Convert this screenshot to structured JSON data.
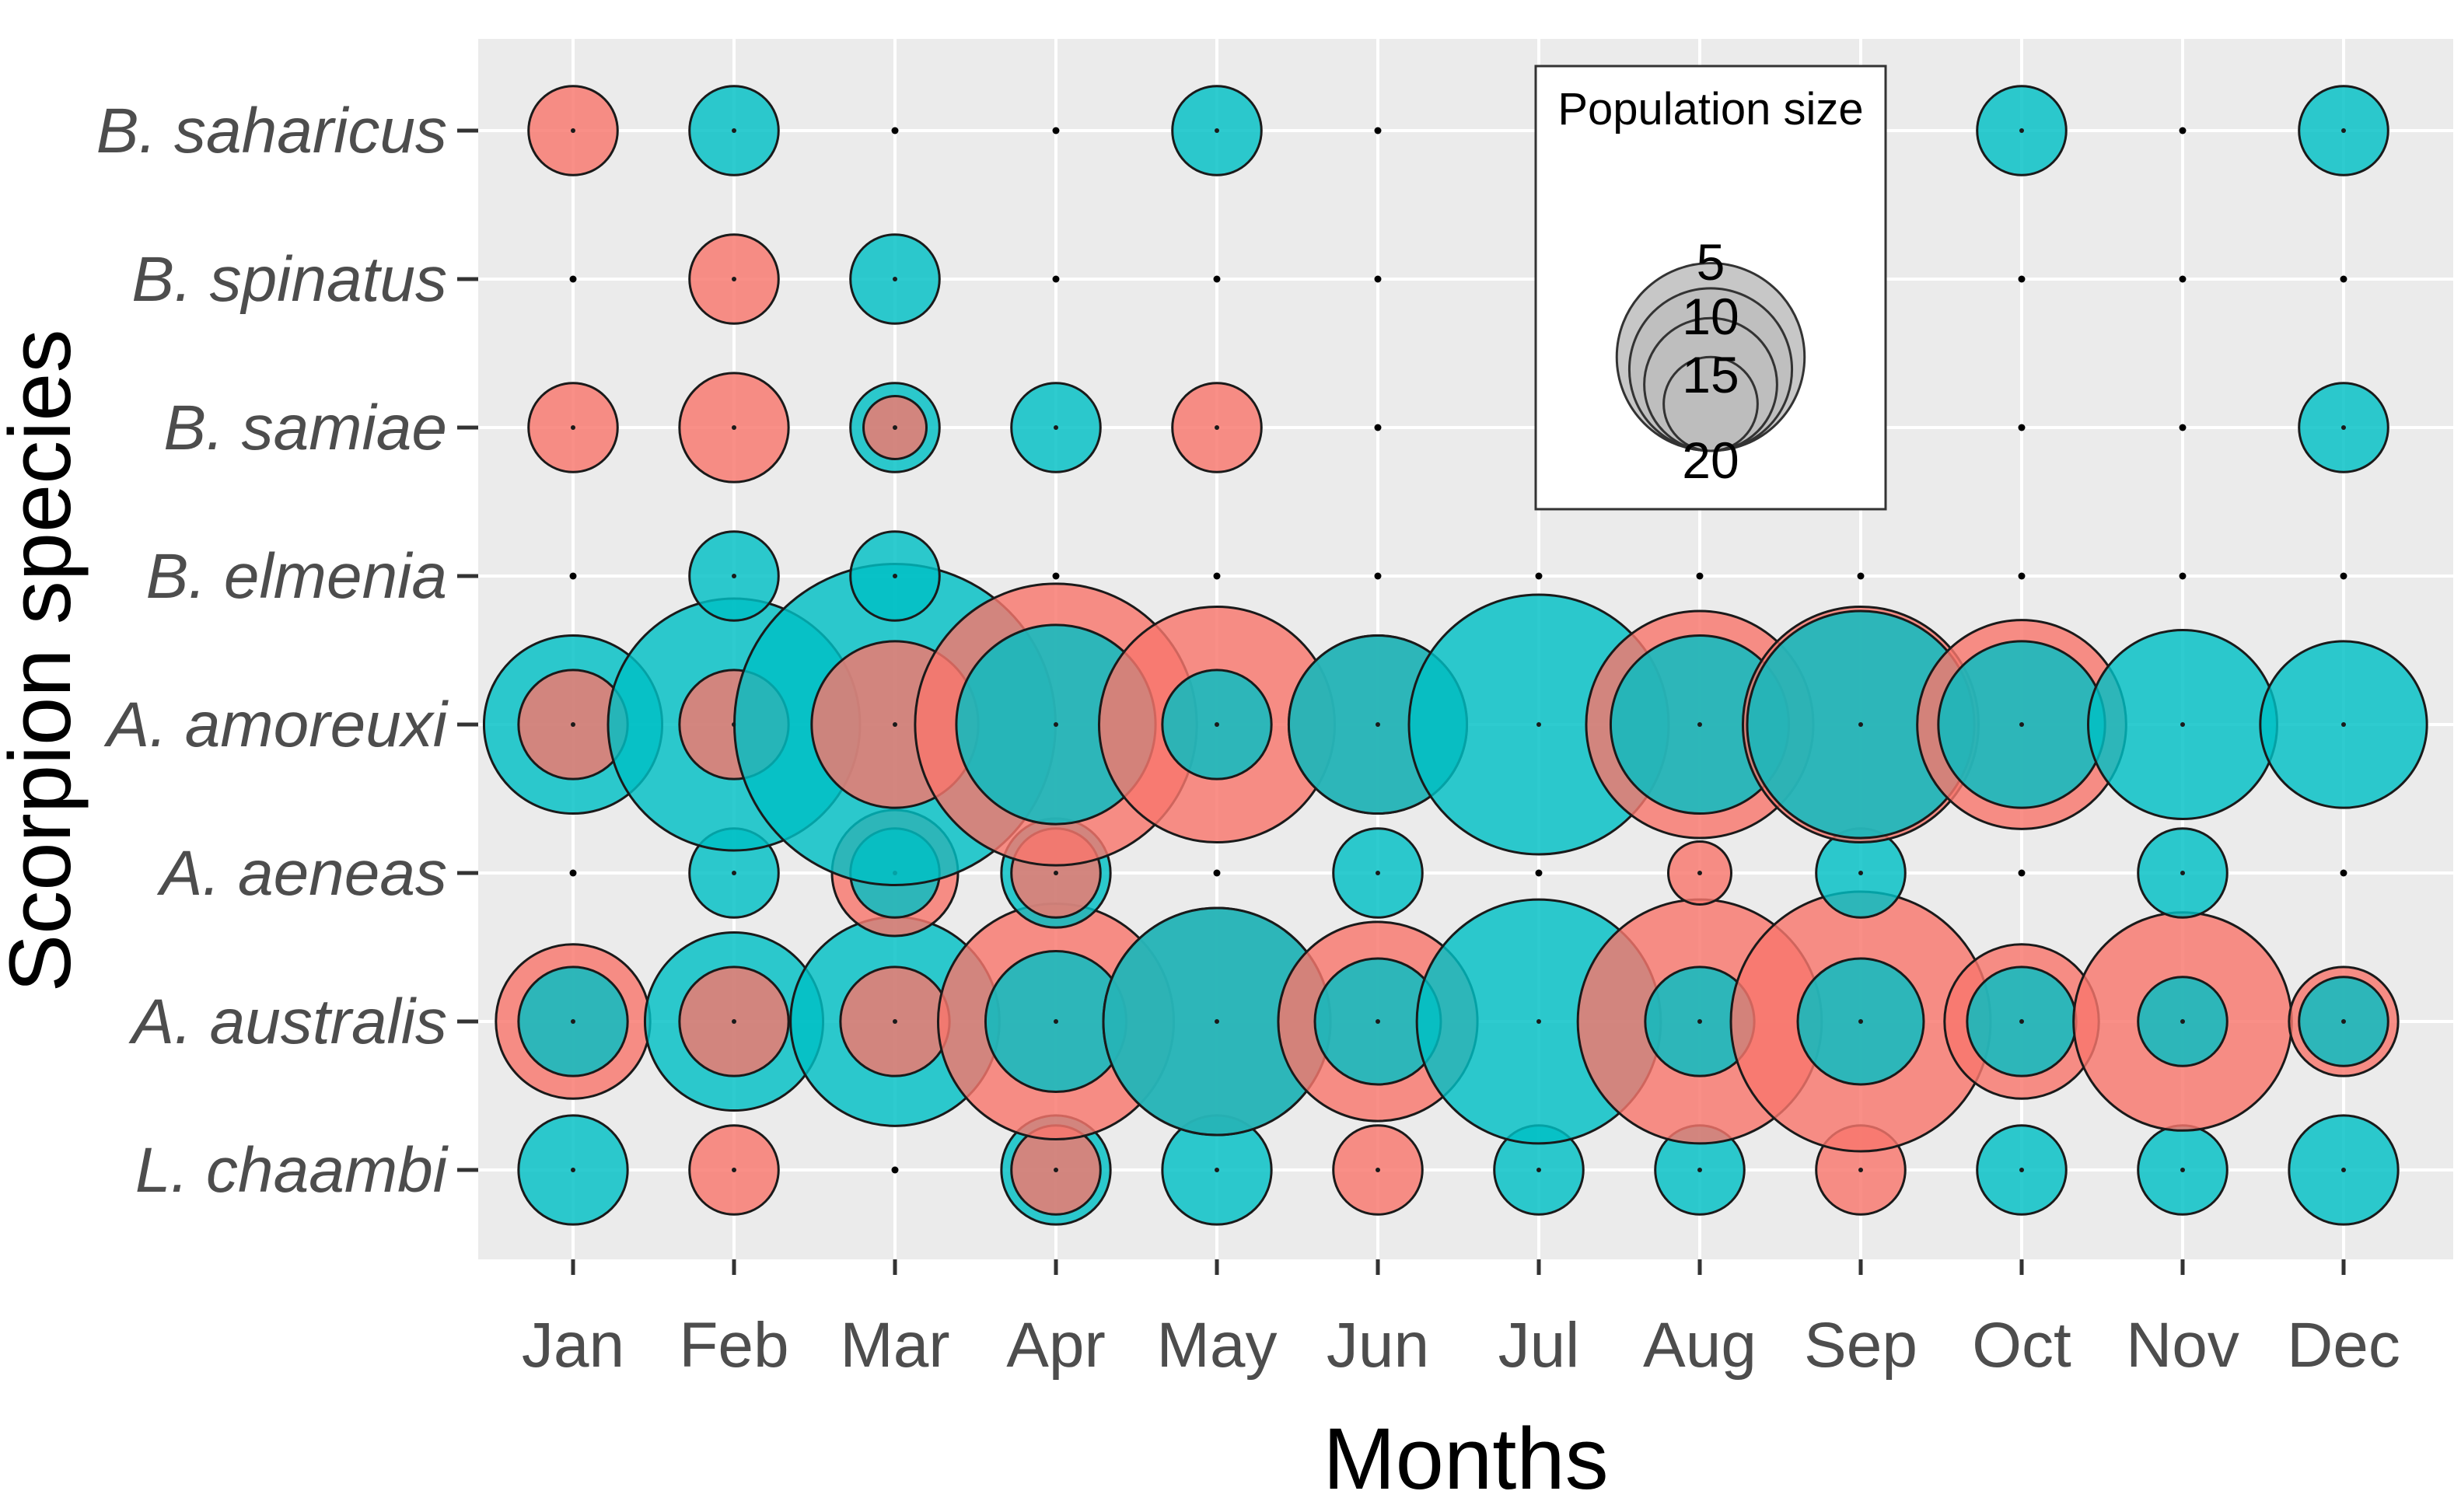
{
  "chart_data": {
    "type": "bubble",
    "xlabel": "Months",
    "ylabel": "Scorpion species",
    "months": [
      "Jan",
      "Feb",
      "Mar",
      "Apr",
      "May",
      "Jun",
      "Jul",
      "Aug",
      "Sep",
      "Oct",
      "Nov",
      "Dec"
    ],
    "species": [
      "L. chaambi",
      "A. australis",
      "A. aeneas",
      "A. amoreuxi",
      "B. elmenia",
      "B. samiae",
      "B. spinatus",
      "B. saharicus"
    ],
    "grid": true,
    "legend": {
      "title": "Population  size",
      "breaks": [
        5,
        10,
        15,
        20
      ],
      "position": "top-right"
    },
    "colors": {
      "group_a": "#f8766d",
      "group_b": "#00bfc4",
      "background": "#ebebeb",
      "gridline": "#ffffff",
      "legend_fill": "#bdbdbd"
    },
    "series": [
      {
        "name": "group_a",
        "color": "#f8766d",
        "values": {
          "B. saharicus": [
            2,
            0,
            0,
            0,
            0,
            0,
            0,
            0,
            0,
            0,
            0,
            0
          ],
          "B. spinatus": [
            0,
            2,
            0,
            0,
            0,
            0,
            0,
            0,
            0,
            0,
            0,
            0
          ],
          "B. samiae": [
            2,
            3,
            1,
            0,
            2,
            0,
            0,
            0,
            0,
            0,
            0,
            0
          ],
          "B. elmenia": [
            0,
            0,
            0,
            0,
            0,
            0,
            0,
            0,
            0,
            0,
            0,
            0
          ],
          "A. amoreuxi": [
            3,
            3,
            7,
            20,
            14,
            8,
            0,
            13,
            14,
            11,
            0,
            0
          ],
          "A. aeneas": [
            0,
            0,
            4,
            2,
            0,
            0,
            0,
            1,
            0,
            0,
            0,
            0
          ],
          "A. australis": [
            6,
            3,
            3,
            14,
            13,
            10,
            0,
            15,
            17,
            6,
            12,
            3
          ],
          "L. chaambi": [
            0,
            2,
            0,
            2,
            0,
            2,
            0,
            0,
            2,
            0,
            0,
            0
          ]
        }
      },
      {
        "name": "group_b",
        "color": "#00bfc4",
        "values": {
          "B. saharicus": [
            0,
            2,
            0,
            0,
            2,
            0,
            0,
            0,
            0,
            2,
            0,
            2
          ],
          "B. spinatus": [
            0,
            0,
            2,
            0,
            0,
            0,
            0,
            0,
            0,
            0,
            0,
            0
          ],
          "B. samiae": [
            0,
            0,
            2,
            2,
            0,
            0,
            0,
            0,
            0,
            0,
            0,
            2
          ],
          "B. elmenia": [
            0,
            2,
            2,
            0,
            0,
            0,
            0,
            0,
            0,
            0,
            0,
            0
          ],
          "A. amoreuxi": [
            8,
            16,
            26,
            10,
            3,
            8,
            17,
            8,
            13,
            7,
            9,
            7
          ],
          "A. aeneas": [
            0,
            2,
            2,
            3,
            0,
            2,
            0,
            0,
            2,
            0,
            2,
            0
          ],
          "A. australis": [
            3,
            8,
            11,
            5,
            13,
            4,
            15,
            3,
            4,
            3,
            2,
            2
          ],
          "L. chaambi": [
            3,
            0,
            0,
            3,
            3,
            0,
            2,
            2,
            0,
            2,
            2,
            3
          ]
        }
      }
    ]
  }
}
